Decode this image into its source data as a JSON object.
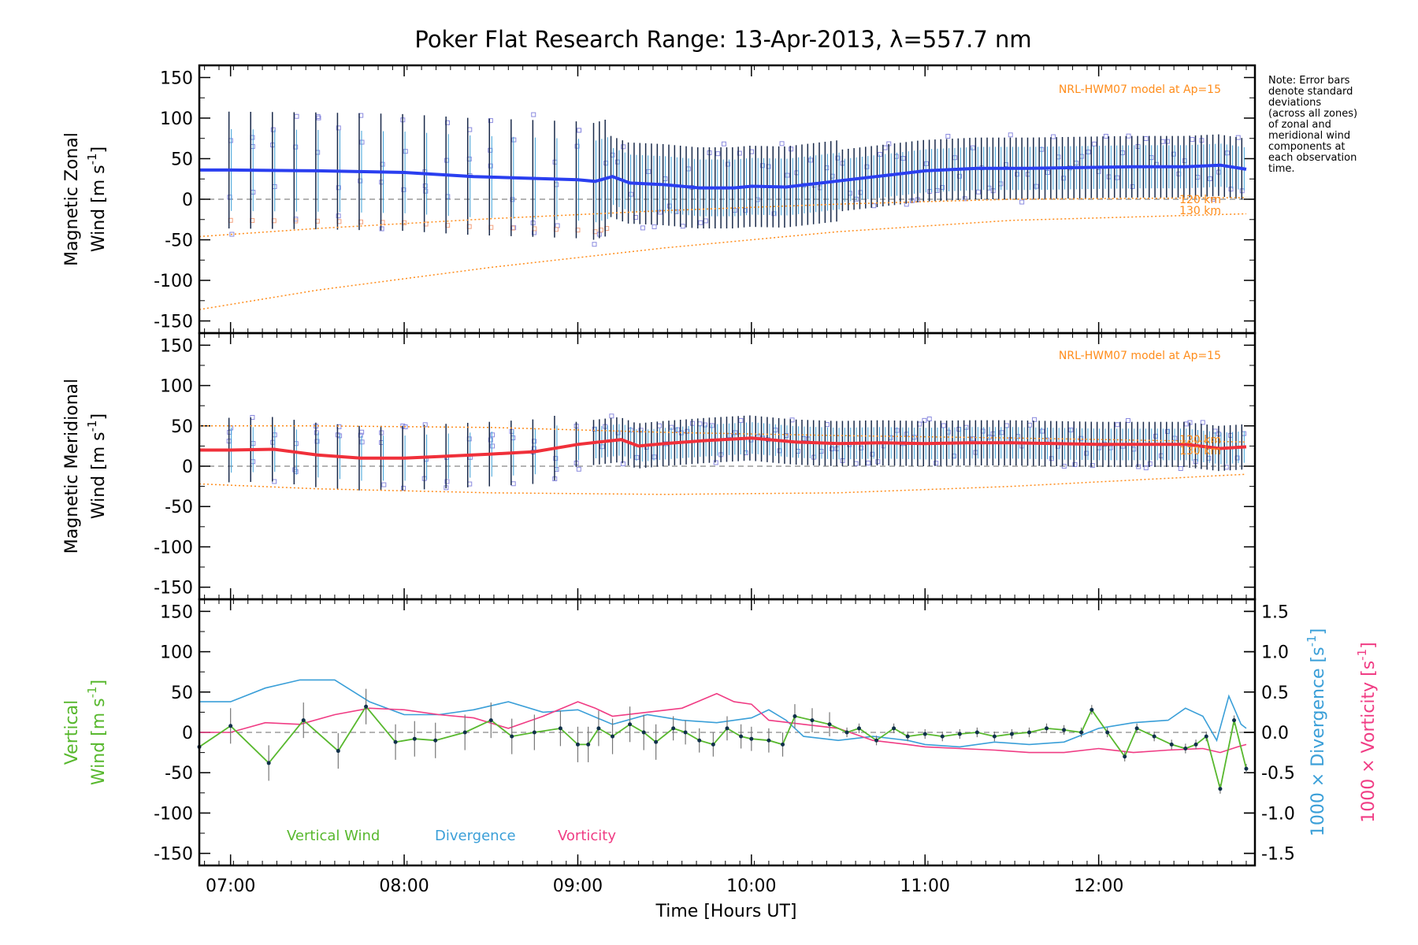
{
  "title": "Poker Flat Research Range: 13-Apr-2013, λ=557.7 nm",
  "note": [
    "Note: Error bars",
    "denote standard",
    "deviations",
    "(across all zones)",
    "of zonal and",
    "meridional wind",
    "components at",
    "each observation",
    "time."
  ],
  "colors": {
    "zonal": "#2a3ff0",
    "meridional": "#f0303a",
    "vertical": "#58b82e",
    "divergence": "#3a9fd8",
    "vorticity": "#f03c84",
    "model": "#ff8c1a",
    "scatter": "#8a8adf",
    "errorbar": "#1a2a4a",
    "zero": "#888888"
  },
  "chart_data": [
    {
      "type": "line",
      "id": "zonal",
      "ylabel_line1": "Magnetic Zonal",
      "ylabel_line2": "Wind",
      "ylabel_units": "[m s",
      "ylabel_exp": "-1",
      "ylabel_close": "]",
      "ylim": [
        -165,
        165
      ],
      "yticks": [
        150,
        100,
        50,
        0,
        -50,
        -100,
        -150
      ],
      "model_label": "NRL-HWM07 model at Ap=15",
      "model_levels": [
        "120 km",
        "130 km"
      ],
      "series": [
        {
          "name": "Magnetic Zonal Wind",
          "x": [
            6.82,
            7.0,
            7.5,
            8.0,
            8.4,
            8.7,
            9.0,
            9.1,
            9.2,
            9.3,
            9.5,
            9.7,
            9.9,
            10.0,
            10.2,
            10.4,
            10.6,
            10.8,
            11.0,
            11.3,
            11.6,
            11.9,
            12.2,
            12.5,
            12.7,
            12.85
          ],
          "values": [
            36,
            36,
            35,
            33,
            28,
            26,
            24,
            22,
            28,
            20,
            18,
            14,
            14,
            16,
            15,
            20,
            25,
            30,
            35,
            38,
            38,
            39,
            40,
            40,
            42,
            37
          ]
        },
        {
          "name": "HWM07 120 km",
          "x": [
            6.82,
            7.5,
            8.5,
            9.5,
            10.5,
            11.5,
            12.85
          ],
          "values": [
            -46,
            -36,
            -24,
            -14,
            -6,
            0,
            2
          ]
        },
        {
          "name": "HWM07 130 km",
          "x": [
            6.82,
            7.5,
            8.5,
            9.5,
            10.5,
            11.5,
            12.85
          ],
          "values": [
            -136,
            -112,
            -84,
            -60,
            -40,
            -26,
            -18
          ]
        }
      ]
    },
    {
      "type": "line",
      "id": "meridional",
      "ylabel_line1": "Magnetic Meridional",
      "ylabel_line2": "Wind",
      "ylabel_units": "[m s",
      "ylabel_exp": "-1",
      "ylabel_close": "]",
      "ylim": [
        -165,
        165
      ],
      "yticks": [
        150,
        100,
        50,
        0,
        -50,
        -100,
        -150
      ],
      "model_label": "NRL-HWM07 model at Ap=15",
      "model_levels": [
        "120 km",
        "130 km"
      ],
      "series": [
        {
          "name": "Magnetic Meridional Wind",
          "x": [
            6.82,
            7.0,
            7.25,
            7.5,
            7.75,
            8.0,
            8.2,
            8.5,
            8.75,
            9.0,
            9.25,
            9.35,
            9.5,
            9.75,
            10.0,
            10.25,
            10.5,
            10.75,
            11.0,
            11.25,
            11.5,
            11.75,
            12.0,
            12.25,
            12.5,
            12.7,
            12.85
          ],
          "values": [
            20,
            20,
            21,
            14,
            10,
            10,
            12,
            15,
            18,
            27,
            33,
            25,
            28,
            32,
            35,
            30,
            28,
            29,
            28,
            29,
            29,
            28,
            27,
            27,
            27,
            22,
            24
          ]
        },
        {
          "name": "HWM07 120 km",
          "x": [
            6.82,
            7.5,
            8.5,
            9.5,
            10.5,
            11.5,
            12.85
          ],
          "values": [
            50,
            50,
            48,
            42,
            38,
            35,
            30
          ]
        },
        {
          "name": "HWM07 130 km",
          "x": [
            6.82,
            7.5,
            8.5,
            9.5,
            10.5,
            11.5,
            12.85
          ],
          "values": [
            -22,
            -28,
            -33,
            -35,
            -33,
            -25,
            -10
          ]
        }
      ]
    },
    {
      "type": "line",
      "id": "vertical",
      "ylabel_line1": "Vertical",
      "ylabel_line2": "Wind",
      "ylabel_units": "[m s",
      "ylabel_exp": "-1",
      "ylabel_close": "]",
      "ylim": [
        -165,
        165
      ],
      "yticks": [
        150,
        100,
        50,
        0,
        -50,
        -100,
        -150
      ],
      "y2label": "1000 × Divergence",
      "y2units": "[s",
      "y2label_b": "1000 × Vorticity",
      "y2units_b": "[s",
      "y2exp": "-1",
      "y2close": "]",
      "y2lim": [
        -1.65,
        1.65
      ],
      "y2ticks": [
        "1.5",
        "1.0",
        "0.5",
        "0.0",
        "-0.5",
        "-1.0",
        "-1.5"
      ],
      "y2tick_values": [
        1.5,
        1.0,
        0.5,
        0.0,
        -0.5,
        -1.0,
        -1.5
      ],
      "legend": [
        "Vertical Wind",
        "Divergence",
        "Vorticity"
      ],
      "series": [
        {
          "name": "Vertical Wind",
          "x": [
            6.82,
            7.0,
            7.22,
            7.42,
            7.62,
            7.78,
            7.95,
            8.06,
            8.18,
            8.35,
            8.5,
            8.62,
            8.75,
            8.9,
            9.0,
            9.06,
            9.12,
            9.2,
            9.3,
            9.38,
            9.45,
            9.55,
            9.62,
            9.7,
            9.78,
            9.86,
            9.94,
            10.0,
            10.1,
            10.18,
            10.25,
            10.35,
            10.45,
            10.55,
            10.62,
            10.72,
            10.82,
            10.9,
            11.0,
            11.1,
            11.2,
            11.3,
            11.4,
            11.5,
            11.6,
            11.7,
            11.8,
            11.9,
            11.96,
            12.05,
            12.15,
            12.22,
            12.32,
            12.42,
            12.5,
            12.56,
            12.62,
            12.7,
            12.78,
            12.85
          ],
          "values": [
            -18,
            8,
            -38,
            15,
            -23,
            32,
            -12,
            -8,
            -10,
            0,
            15,
            -5,
            0,
            5,
            -15,
            -15,
            5,
            -5,
            10,
            0,
            -12,
            5,
            0,
            -10,
            -15,
            5,
            -5,
            -8,
            -10,
            -15,
            20,
            15,
            10,
            0,
            5,
            -10,
            5,
            -5,
            -2,
            -5,
            -2,
            0,
            -5,
            -2,
            0,
            5,
            3,
            0,
            28,
            0,
            -30,
            5,
            -5,
            -15,
            -20,
            -15,
            -5,
            -70,
            15,
            -45
          ]
        },
        {
          "name": "Divergence (×1000)",
          "x": [
            6.82,
            7.0,
            7.2,
            7.4,
            7.6,
            7.8,
            8.0,
            8.2,
            8.4,
            8.6,
            8.8,
            9.0,
            9.2,
            9.4,
            9.6,
            9.8,
            10.0,
            10.1,
            10.2,
            10.3,
            10.5,
            10.7,
            10.9,
            11.0,
            11.2,
            11.4,
            11.6,
            11.8,
            12.0,
            12.2,
            12.4,
            12.5,
            12.6,
            12.68,
            12.75,
            12.82,
            12.85
          ],
          "values": [
            0.38,
            0.38,
            0.55,
            0.65,
            0.65,
            0.38,
            0.22,
            0.22,
            0.28,
            0.38,
            0.25,
            0.28,
            0.1,
            0.22,
            0.15,
            0.12,
            0.18,
            0.28,
            0.15,
            -0.05,
            -0.1,
            -0.05,
            -0.1,
            -0.15,
            -0.18,
            -0.12,
            -0.15,
            -0.12,
            0.05,
            0.12,
            0.15,
            0.3,
            0.2,
            -0.1,
            0.45,
            0.1,
            0.05
          ]
        },
        {
          "name": "Vorticity (×1000)",
          "x": [
            6.82,
            7.0,
            7.2,
            7.4,
            7.6,
            7.8,
            8.0,
            8.2,
            8.4,
            8.6,
            8.8,
            9.0,
            9.1,
            9.2,
            9.4,
            9.6,
            9.8,
            9.9,
            10.0,
            10.1,
            10.3,
            10.5,
            10.7,
            10.9,
            11.0,
            11.2,
            11.4,
            11.6,
            11.8,
            12.0,
            12.2,
            12.4,
            12.6,
            12.7,
            12.8,
            12.85
          ],
          "values": [
            0.0,
            0.0,
            0.12,
            0.1,
            0.22,
            0.3,
            0.28,
            0.22,
            0.18,
            0.05,
            0.2,
            0.38,
            0.3,
            0.2,
            0.25,
            0.3,
            0.48,
            0.38,
            0.35,
            0.15,
            0.1,
            0.05,
            -0.1,
            -0.15,
            -0.18,
            -0.2,
            -0.22,
            -0.25,
            -0.25,
            -0.2,
            -0.25,
            -0.22,
            -0.2,
            -0.25,
            -0.18,
            -0.15
          ]
        }
      ]
    }
  ],
  "xaxis": {
    "label": "Time [Hours UT]",
    "xlim": [
      6.82,
      12.9
    ],
    "tick_values": [
      7,
      8,
      9,
      10,
      11,
      12
    ],
    "tick_labels": [
      "07:00",
      "08:00",
      "09:00",
      "10:00",
      "11:00",
      "12:00"
    ]
  }
}
